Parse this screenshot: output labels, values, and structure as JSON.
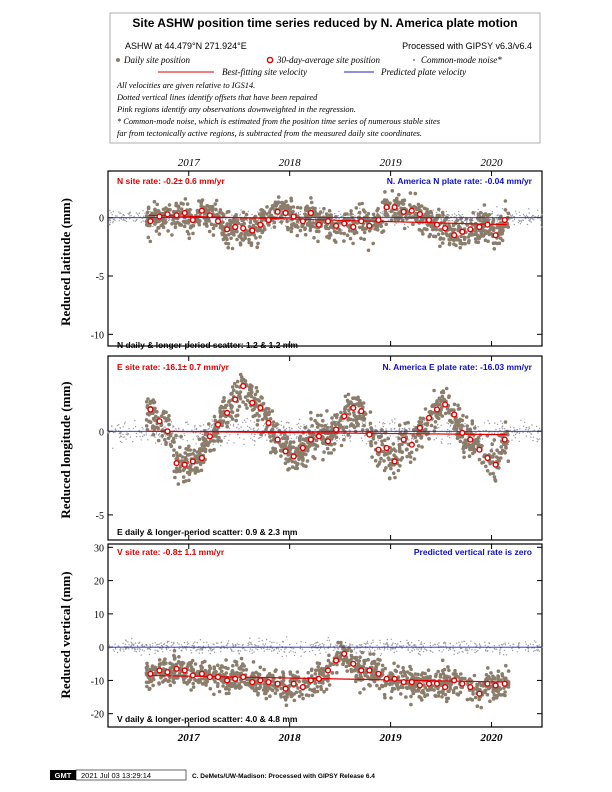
{
  "header": {
    "title": "Site ASHW position time series reduced by N. America plate motion",
    "site_coords": "ASHW at 44.479°N 271.924°E",
    "processed": "Processed with GIPSY v6.3/v6.4",
    "legend_daily": "Daily site position",
    "legend_avg": "30-day-average site position",
    "legend_cm": "Common-mode noise*",
    "legend_best": "Best-fitting site velocity",
    "legend_pred": "Predicted plate velocity",
    "note1": "All velocities are given relative to IGS14.",
    "note2": "Dotted vertical lines identify offsets that have been repaired",
    "note3": "Pink regions identify any observations downweighted in the regression.",
    "note4": "* Common-mode noise, which is estimated from the position time series of numerous stable sites",
    "note5": "far from tectonically active regions, is subtracted from the measured daily site coordinates."
  },
  "colors": {
    "daily": "#8b7d6b",
    "common_mode": "#9a9aa6",
    "average_fill": "#ffffff",
    "average_edge": "#e00000",
    "best_fit": "#e00000",
    "predicted": "#2020c0",
    "rate_red": "#e00000",
    "rate_blue": "#1010c0"
  },
  "year_ticks": [
    "2017",
    "2018",
    "2019",
    "2020"
  ],
  "chart_data": [
    {
      "type": "scatter",
      "ylabel": "Reduced latitude (mm)",
      "ylim": [
        -11,
        4
      ],
      "yticks": [
        0,
        -5,
        -10
      ],
      "x_range": [
        2016.2,
        2020.5
      ],
      "site_rate": "N site rate:  -0.2± 0.6 mm/yr",
      "plate_rate": "N. America N plate rate:  -0.04 mm/yr",
      "scatter_text": "N daily & longer-period scatter:   1.2 &   1.2 mm",
      "best_fit": {
        "x": [
          2016.6,
          2020.15
        ],
        "y": [
          0.2,
          -0.6
        ]
      },
      "predicted": {
        "x": [
          2016.2,
          2020.5
        ],
        "y": [
          0.0,
          0.0
        ]
      },
      "averages": {
        "x": [
          2016.62,
          2016.71,
          2016.79,
          2016.88,
          2016.96,
          2017.04,
          2017.13,
          2017.21,
          2017.29,
          2017.38,
          2017.46,
          2017.54,
          2017.63,
          2017.71,
          2017.79,
          2017.88,
          2017.96,
          2018.04,
          2018.13,
          2018.21,
          2018.29,
          2018.38,
          2018.46,
          2018.54,
          2018.63,
          2018.71,
          2018.79,
          2018.88,
          2018.96,
          2019.04,
          2019.13,
          2019.21,
          2019.29,
          2019.38,
          2019.46,
          2019.54,
          2019.63,
          2019.71,
          2019.79,
          2019.88,
          2019.96,
          2020.04,
          2020.13
        ],
        "y": [
          -0.3,
          0.1,
          0.3,
          0.2,
          0.4,
          -0.2,
          0.6,
          0.2,
          -0.3,
          -1.0,
          -0.8,
          -0.9,
          -1.1,
          -0.6,
          -0.2,
          0.5,
          0.4,
          0.1,
          -0.3,
          0.4,
          -0.6,
          -0.3,
          -0.7,
          -0.5,
          -0.8,
          -0.3,
          -0.7,
          -0.2,
          0.9,
          0.9,
          0.5,
          0.6,
          0.3,
          -0.2,
          -0.6,
          -0.9,
          -1.5,
          -1.2,
          -1.0,
          -0.8,
          -0.6,
          -1.5,
          -0.2
        ]
      }
    },
    {
      "type": "scatter",
      "ylabel": "Reduced longitude (mm)",
      "ylim": [
        -6.5,
        4.5
      ],
      "yticks": [
        0,
        -5
      ],
      "x_range": [
        2016.2,
        2020.5
      ],
      "site_rate": "E site rate:  -16.1± 0.7 mm/yr",
      "plate_rate": "N. America E plate rate:  -16.03 mm/yr",
      "scatter_text": "E daily & longer-period scatter:   0.9 &   2.3 mm",
      "best_fit": {
        "x": [
          2016.6,
          2020.15
        ],
        "y": [
          0.0,
          -0.2
        ]
      },
      "predicted": {
        "x": [
          2016.2,
          2020.5
        ],
        "y": [
          0.0,
          0.0
        ]
      },
      "averages": {
        "x": [
          2016.62,
          2016.71,
          2016.79,
          2016.88,
          2016.96,
          2017.04,
          2017.13,
          2017.21,
          2017.29,
          2017.38,
          2017.46,
          2017.54,
          2017.63,
          2017.71,
          2017.79,
          2017.88,
          2017.96,
          2018.04,
          2018.13,
          2018.21,
          2018.29,
          2018.38,
          2018.46,
          2018.54,
          2018.63,
          2018.71,
          2018.79,
          2018.88,
          2018.96,
          2019.04,
          2019.13,
          2019.21,
          2019.29,
          2019.38,
          2019.46,
          2019.54,
          2019.63,
          2019.71,
          2019.79,
          2019.88,
          2019.96,
          2020.04,
          2020.13
        ],
        "y": [
          1.3,
          0.6,
          0.0,
          -1.9,
          -2.0,
          -1.8,
          -1.6,
          -0.3,
          0.4,
          1.1,
          1.9,
          2.7,
          1.7,
          1.4,
          0.5,
          -0.5,
          -1.2,
          -1.5,
          -1.0,
          -0.5,
          -0.3,
          -0.6,
          0.1,
          0.9,
          1.4,
          1.2,
          -0.2,
          -1.1,
          -1.0,
          -1.8,
          -0.5,
          -0.8,
          0.2,
          0.8,
          1.3,
          1.6,
          1.0,
          -0.1,
          -0.5,
          -1.1,
          -1.6,
          -2.0,
          -0.5
        ]
      }
    },
    {
      "type": "scatter",
      "ylabel": "Reduced vertical (mm)",
      "ylim": [
        -24,
        31
      ],
      "yticks": [
        30,
        20,
        10,
        0,
        -10,
        -20
      ],
      "x_range": [
        2016.2,
        2020.5
      ],
      "site_rate": "V site rate:  -0.8± 1.1 mm/yr",
      "plate_rate": "Predicted vertical rate is zero",
      "scatter_text": "V daily & longer-period scatter:   4.0 &   4.8 mm",
      "best_fit": {
        "x": [
          2016.6,
          2020.15
        ],
        "y": [
          -8.5,
          -10.5
        ]
      },
      "predicted": {
        "x": [
          2016.2,
          2020.5
        ],
        "y": [
          0.0,
          0.0
        ]
      },
      "averages": {
        "x": [
          2016.62,
          2016.71,
          2016.79,
          2016.88,
          2016.96,
          2017.04,
          2017.13,
          2017.21,
          2017.29,
          2017.38,
          2017.46,
          2017.54,
          2017.63,
          2017.71,
          2017.79,
          2017.88,
          2017.96,
          2018.04,
          2018.13,
          2018.21,
          2018.29,
          2018.38,
          2018.46,
          2018.54,
          2018.63,
          2018.71,
          2018.79,
          2018.88,
          2018.96,
          2019.04,
          2019.13,
          2019.21,
          2019.29,
          2019.38,
          2019.46,
          2019.54,
          2019.63,
          2019.71,
          2019.79,
          2019.88,
          2019.96,
          2020.04,
          2020.13
        ],
        "y": [
          -8,
          -7,
          -7.5,
          -6.5,
          -7,
          -8.5,
          -8,
          -9,
          -9,
          -10,
          -9.5,
          -9,
          -10.5,
          -10,
          -10.5,
          -11,
          -12.5,
          -11,
          -12,
          -10,
          -9.5,
          -7,
          -4,
          -2,
          -5,
          -7,
          -7,
          -8,
          -9.5,
          -9.5,
          -10.5,
          -10.5,
          -11.5,
          -11,
          -11,
          -12,
          -10,
          -11,
          -12,
          -14,
          -11,
          -11.5,
          -11
        ]
      }
    }
  ],
  "footer": {
    "logo": "GMT",
    "timestamp": "2021 Jul 03 13:29:14",
    "credit": "C. DeMets/UW-Madison: Processed with GIPSY Release 6.4"
  }
}
